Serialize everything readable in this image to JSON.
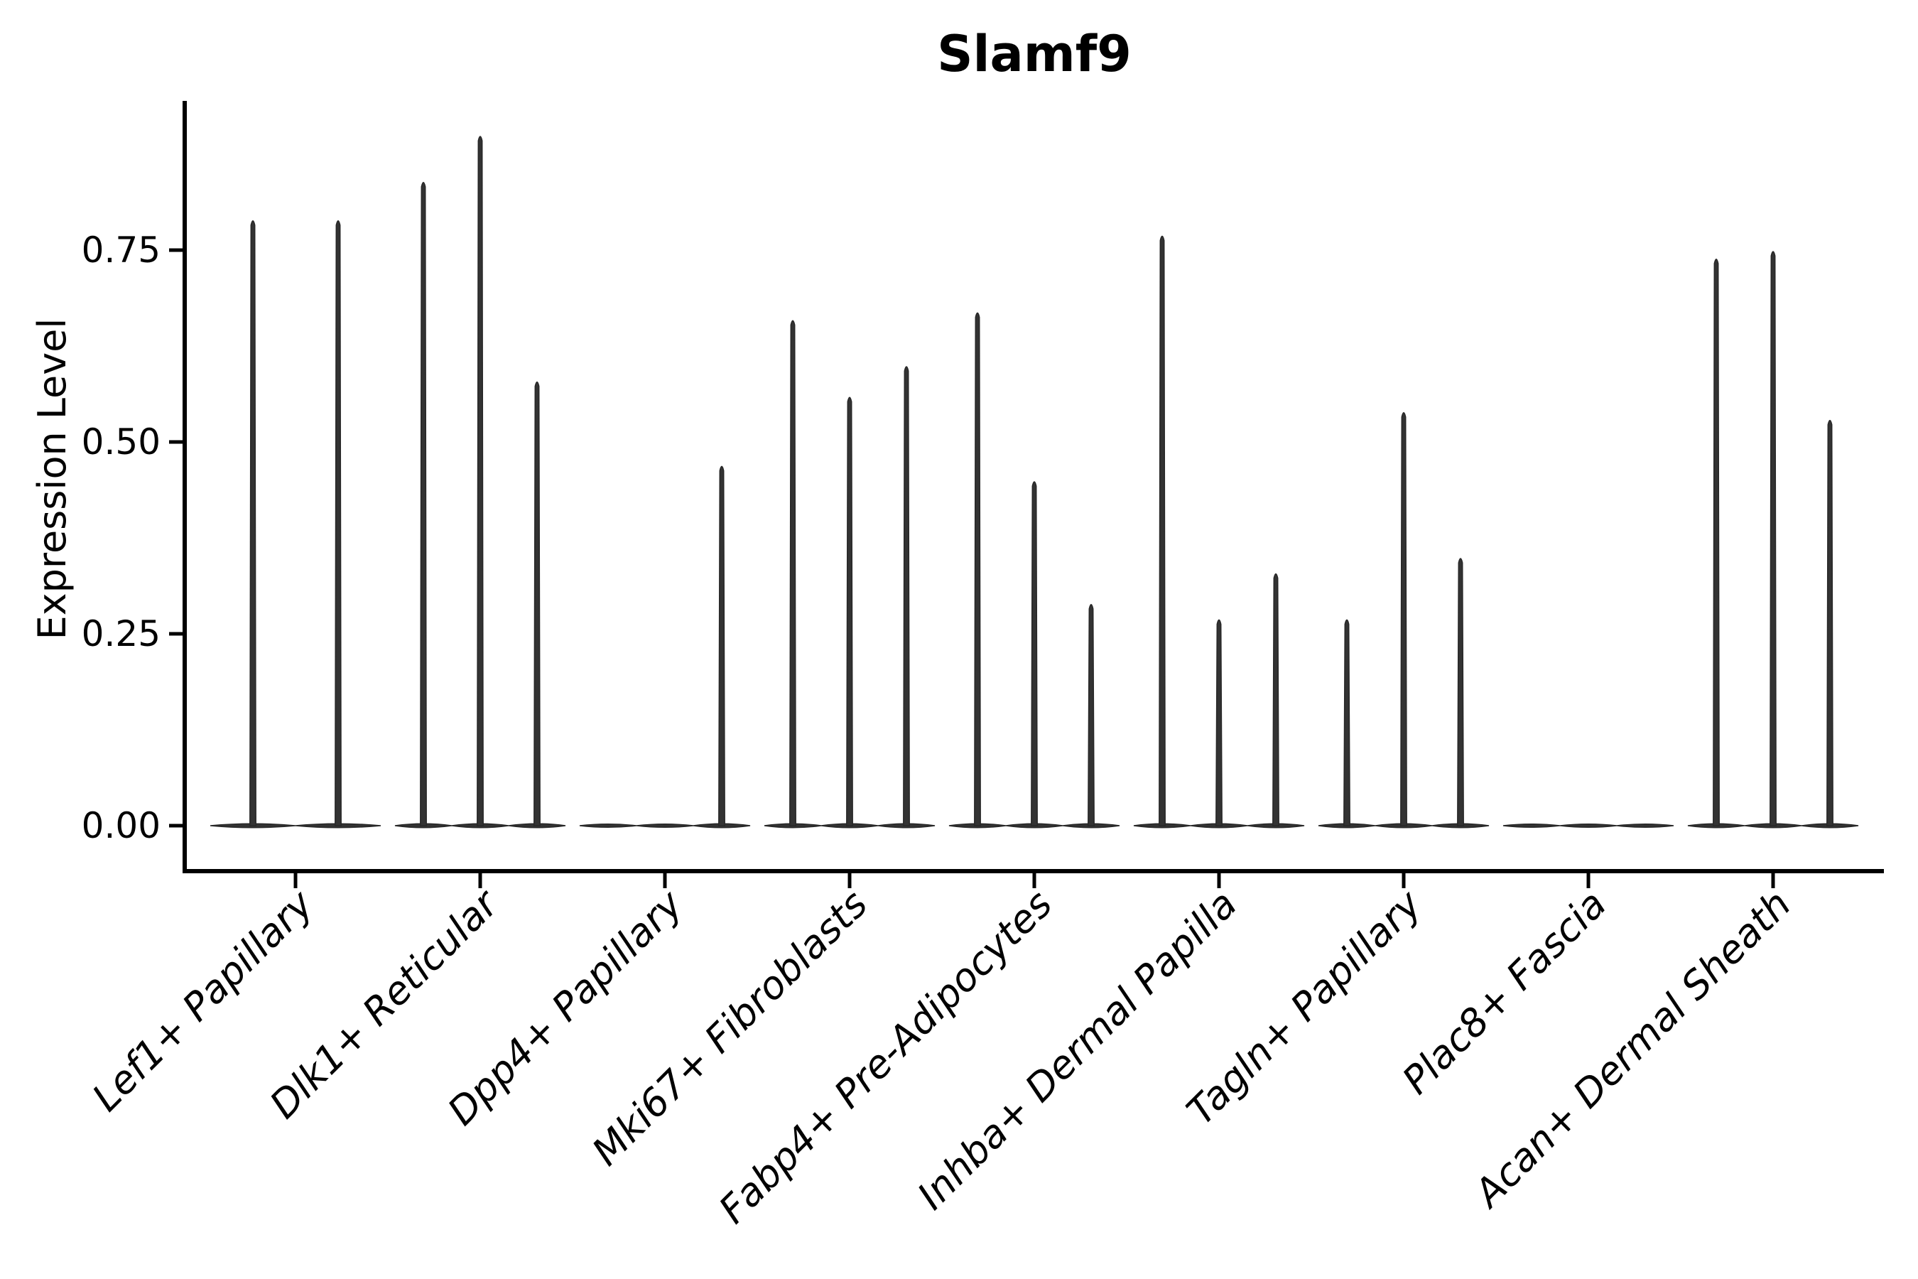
{
  "figure": {
    "title": "Slamf9",
    "ylabel": "Expression Level"
  },
  "chart_data": {
    "type": "violin",
    "title": "Slamf9",
    "xlabel": "",
    "ylabel": "Expression Level",
    "yticks": [
      0.0,
      0.25,
      0.5,
      0.75
    ],
    "ytick_labels": [
      "0.00",
      "0.25",
      "0.50",
      "0.75"
    ],
    "ylim": [
      -0.06,
      0.945
    ],
    "grid": false,
    "legend": "none",
    "description": "Needle-like violin plot of Slamf9 expression per fibroblast cluster; each category holds side-by-side sub-violins whose bodies collapse at 0 with thin spikes reaching the listed maximum expression values (0 = flat baseline, no spike).",
    "categories": [
      "Lef1+ Papillary",
      "Dlk1+ Reticular",
      "Dpp4+ Papillary",
      "Mki67+ Fibroblasts",
      "Fabp4+ Pre-Adipocytes",
      "Inhba+ Dermal Papilla",
      "Tagln+ Papillary",
      "Plac8+ Fascia",
      "Acan+ Dermal Sheath"
    ],
    "series": [
      {
        "name": "Lef1+ Papillary",
        "violin_maxima": [
          0.79,
          0.79
        ]
      },
      {
        "name": "Dlk1+ Reticular",
        "violin_maxima": [
          0.84,
          0.9,
          0.58
        ]
      },
      {
        "name": "Dpp4+ Papillary",
        "violin_maxima": [
          0.0,
          0.0,
          0.47
        ]
      },
      {
        "name": "Mki67+ Fibroblasts",
        "violin_maxima": [
          0.66,
          0.56,
          0.6
        ]
      },
      {
        "name": "Fabp4+ Pre-Adipocytes",
        "violin_maxima": [
          0.67,
          0.45,
          0.29
        ]
      },
      {
        "name": "Inhba+ Dermal Papilla",
        "violin_maxima": [
          0.77,
          0.27,
          0.33
        ]
      },
      {
        "name": "Tagln+ Papillary",
        "violin_maxima": [
          0.27,
          0.54,
          0.35
        ]
      },
      {
        "name": "Plac8+ Fascia",
        "violin_maxima": [
          0.0,
          0.0,
          0.0
        ]
      },
      {
        "name": "Acan+ Dermal Sheath",
        "violin_maxima": [
          0.74,
          0.75,
          0.53
        ]
      }
    ],
    "colors": {
      "violin_fill": "#333333",
      "violin_stroke": "#272727",
      "axis": "#000000",
      "text": "#000000",
      "background": "#ffffff"
    }
  }
}
